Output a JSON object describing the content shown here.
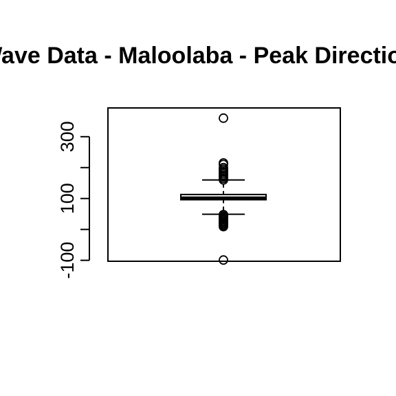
{
  "chart_data": {
    "type": "boxplot",
    "title": "Wave Data - Maloolaba - Peak Direction",
    "xlabel": "",
    "ylabel": "",
    "ylim": [
      -103,
      393
    ],
    "y_ticks": [
      -100,
      0,
      100,
      200,
      300
    ],
    "y_tick_labels": [
      "-100",
      "",
      "100",
      "",
      "300"
    ],
    "box": {
      "whisker_low": 49,
      "q1": 96,
      "median": 101,
      "q3": 113,
      "whisker_high": 160
    },
    "outliers_high": [
      160,
      165,
      170,
      175,
      180,
      185,
      190,
      195,
      200,
      210,
      215,
      360
    ],
    "outliers_low": [
      48,
      44,
      40,
      36,
      32,
      28,
      24,
      20,
      16,
      12,
      9,
      -99
    ],
    "grid": false,
    "legend": "none"
  }
}
